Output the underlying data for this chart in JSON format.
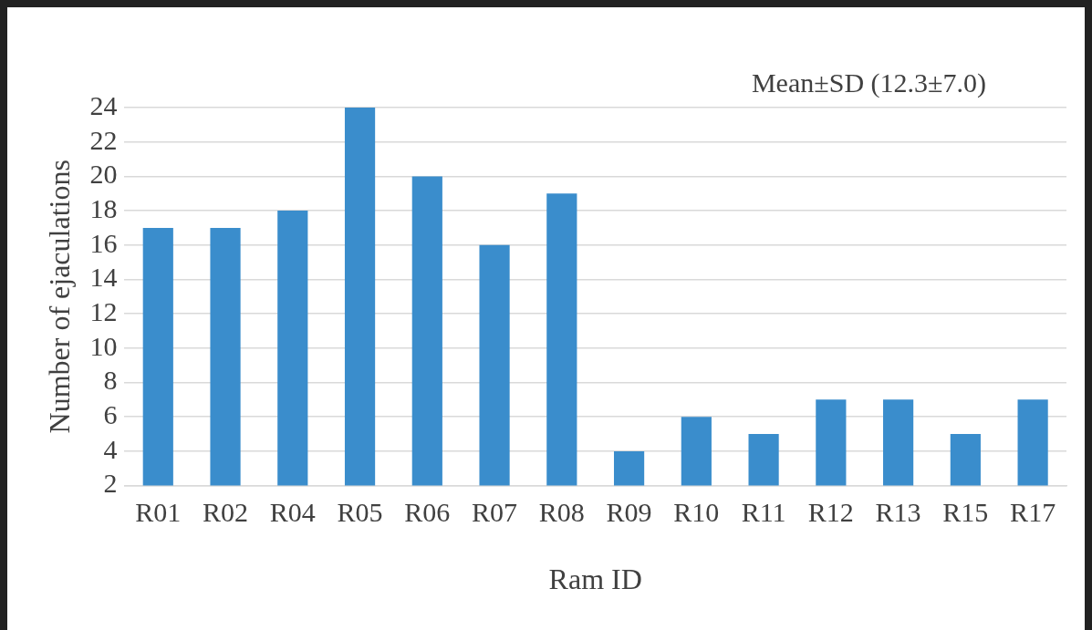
{
  "chart_data": {
    "type": "bar",
    "xlabel": "Ram ID",
    "ylabel": "Number of ejaculations",
    "categories": [
      "R01",
      "R02",
      "R04",
      "R05",
      "R06",
      "R07",
      "R08",
      "R09",
      "R10",
      "R11",
      "R12",
      "R13",
      "R15",
      "R17"
    ],
    "values": [
      17,
      17,
      18,
      24,
      20,
      16,
      19,
      4,
      6,
      5,
      7,
      7,
      5,
      7
    ],
    "color": "#3a8dcc",
    "ylim": [
      2,
      24
    ],
    "yticks": [
      2,
      4,
      6,
      8,
      10,
      12,
      14,
      16,
      18,
      20,
      22,
      24
    ],
    "grid": "y",
    "legend": false,
    "annotations": [
      "Mean±SD (12.3±7.0)"
    ]
  }
}
